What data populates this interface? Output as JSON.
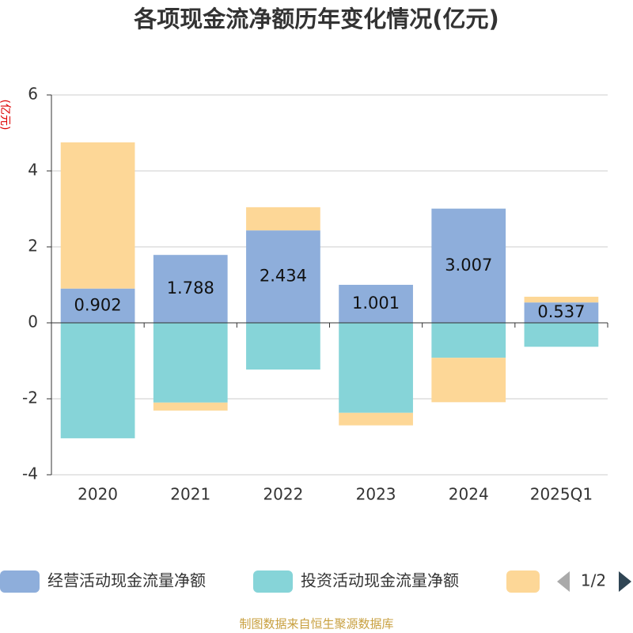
{
  "chart_data": {
    "type": "bar",
    "stacked": true,
    "title": "各项现金流净额历年变化情况(亿元)",
    "y_label": "(亿元)",
    "categories": [
      "2020",
      "2021",
      "2022",
      "2023",
      "2024",
      "2025Q1"
    ],
    "series": [
      {
        "name": "经营活动现金流量净额",
        "color": "#8eaedb",
        "values": [
          0.902,
          1.788,
          2.434,
          1.001,
          3.007,
          0.537
        ],
        "show_labels": true
      },
      {
        "name": "投资活动现金流量净额",
        "color": "#86d4d8",
        "values": [
          -3.04,
          -2.1,
          -1.23,
          -2.37,
          -0.92,
          -0.63
        ]
      },
      {
        "color": "#fdd797",
        "values": [
          3.85,
          -0.21,
          0.61,
          -0.33,
          -1.17,
          0.15
        ]
      }
    ],
    "ylim": [
      -4,
      6
    ],
    "yticks": [
      -4,
      -2,
      0,
      2,
      4,
      6
    ],
    "grid": true,
    "legend_page": "1/2",
    "source": "制图数据来自恒生聚源数据库"
  }
}
